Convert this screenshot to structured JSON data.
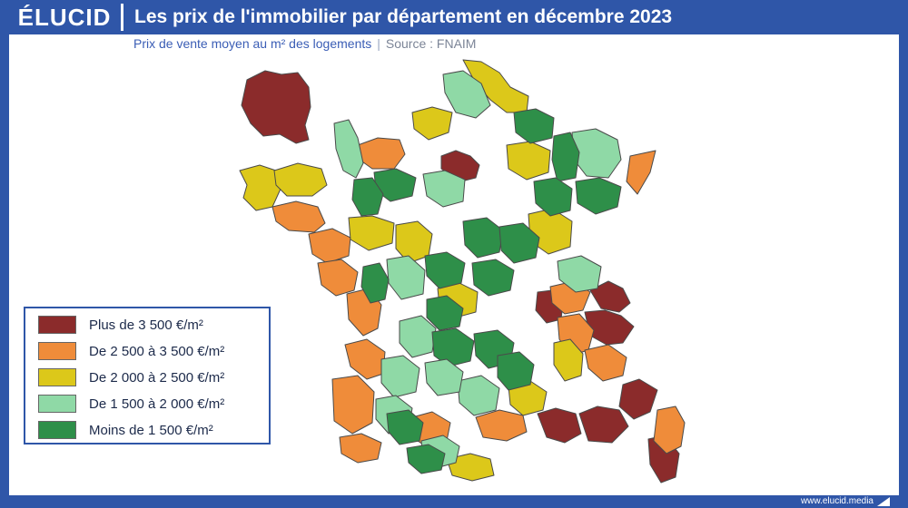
{
  "header": {
    "logo": "ÉLUCID",
    "title": "Les prix de l'immobilier par département en décembre 2023"
  },
  "subtitle": {
    "text": "Prix de vente moyen au m² des logements",
    "separator": "|",
    "source": "Source : FNAIM"
  },
  "legend": {
    "items": [
      {
        "label": "Plus de 3 500 €/m²",
        "color": "#8b2b2b"
      },
      {
        "label": "De 2 500 à 3 500 €/m²",
        "color": "#ef8c3a"
      },
      {
        "label": "De 2 000 à 2 500 €/m²",
        "color": "#dcc81a"
      },
      {
        "label": "De 1 500 à 2 000 €/m²",
        "color": "#8fd9a6"
      },
      {
        "label": "Moins de 1 500 €/m²",
        "color": "#2e8f49"
      }
    ]
  },
  "footer": {
    "site": "www.elucid.media"
  },
  "map": {
    "regions": [
      {
        "name": "paris-inset",
        "class": 0
      },
      {
        "name": "ile-de-france-core",
        "class": 0
      },
      {
        "name": "haute-savoie",
        "class": 0
      },
      {
        "name": "savoie",
        "class": 0
      },
      {
        "name": "isere-north",
        "class": 0
      },
      {
        "name": "alpes-maritimes",
        "class": 0
      },
      {
        "name": "var",
        "class": 0
      },
      {
        "name": "bouches-du-rhone",
        "class": 0
      },
      {
        "name": "corse-du-sud",
        "class": 0
      },
      {
        "name": "nord-coast",
        "class": 2
      },
      {
        "name": "bas-rhin",
        "class": 1
      },
      {
        "name": "calvados",
        "class": 1
      },
      {
        "name": "finistere",
        "class": 2
      },
      {
        "name": "morbihan",
        "class": 1
      },
      {
        "name": "loire-atlantique",
        "class": 1
      },
      {
        "name": "vendee",
        "class": 1
      },
      {
        "name": "charente-maritime",
        "class": 1
      },
      {
        "name": "gironde",
        "class": 1
      },
      {
        "name": "landes",
        "class": 1
      },
      {
        "name": "pyrenees-atlantiques",
        "class": 1
      },
      {
        "name": "haute-garonne",
        "class": 1
      },
      {
        "name": "herault",
        "class": 1
      },
      {
        "name": "haute-corse",
        "class": 1
      },
      {
        "name": "rhone",
        "class": 1
      },
      {
        "name": "drome",
        "class": 1
      },
      {
        "name": "hautes-alpes",
        "class": 1
      },
      {
        "name": "gard",
        "class": 2
      },
      {
        "name": "vaucluse",
        "class": 2
      },
      {
        "name": "pyrenees-orientales",
        "class": 2
      },
      {
        "name": "oise",
        "class": 2
      },
      {
        "name": "marne",
        "class": 2
      },
      {
        "name": "cote-d-or",
        "class": 2
      },
      {
        "name": "sarthe",
        "class": 2
      },
      {
        "name": "indre-et-loire",
        "class": 2
      },
      {
        "name": "puy-de-dome",
        "class": 2
      },
      {
        "name": "cotes-d-armor",
        "class": 2
      },
      {
        "name": "manche",
        "class": 3
      },
      {
        "name": "somme",
        "class": 3
      },
      {
        "name": "moselle",
        "class": 3
      },
      {
        "name": "loiret",
        "class": 3
      },
      {
        "name": "vienne",
        "class": 3
      },
      {
        "name": "haute-vienne",
        "class": 3
      },
      {
        "name": "dordogne",
        "class": 3
      },
      {
        "name": "lot-et-garonne",
        "class": 3
      },
      {
        "name": "ain",
        "class": 3
      },
      {
        "name": "aude",
        "class": 3
      },
      {
        "name": "ardennes",
        "class": 4
      },
      {
        "name": "meuse",
        "class": 4
      },
      {
        "name": "vosges",
        "class": 4
      },
      {
        "name": "haute-marne",
        "class": 4
      },
      {
        "name": "orne",
        "class": 4
      },
      {
        "name": "mayenne",
        "class": 4
      },
      {
        "name": "deux-sevres",
        "class": 4
      },
      {
        "name": "indre",
        "class": 4
      },
      {
        "name": "cher",
        "class": 4
      },
      {
        "name": "nievre",
        "class": 4
      },
      {
        "name": "allier",
        "class": 4
      },
      {
        "name": "creuse",
        "class": 4
      },
      {
        "name": "correze",
        "class": 4
      },
      {
        "name": "cantal",
        "class": 4
      },
      {
        "name": "lozere",
        "class": 4
      },
      {
        "name": "ariege",
        "class": 4
      },
      {
        "name": "gers",
        "class": 4
      },
      {
        "name": "aveyron",
        "class": 3
      },
      {
        "name": "lot",
        "class": 3
      }
    ]
  }
}
